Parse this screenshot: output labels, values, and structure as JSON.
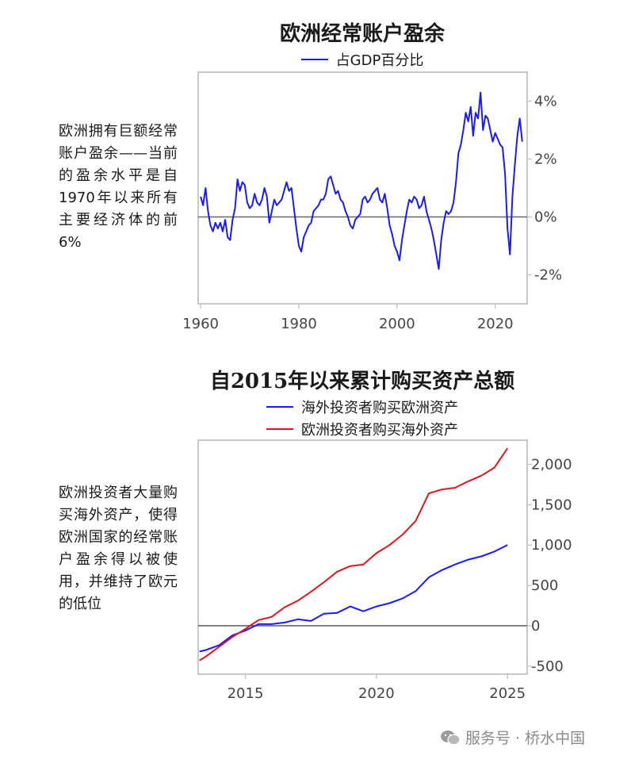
{
  "watermark": {
    "icon": "wechat-icon",
    "text": "服务号 · 桥水中国"
  },
  "top": {
    "side_note": "欧洲拥有巨额经常账户盈余——当前的盈余水平是自1970年以来所有主要经济体的前6%"
  },
  "bottom": {
    "side_note": "欧洲投资者大量购买海外资产，使得欧洲国家的经常账户盈余得以被使用，并维持了欧元的低位"
  },
  "colors": {
    "blue": "#1a1aff",
    "red": "#e0141e",
    "zero_line": "#666666",
    "frame": "#c8c8c8"
  },
  "chart_data": [
    {
      "type": "line",
      "title": "欧洲经常账户盈余",
      "ylabel": "",
      "xlabel": "",
      "xlim": [
        1959.5,
        2026.5
      ],
      "ylim": [
        -3.0,
        5.0
      ],
      "x_ticks": [
        1960,
        1980,
        2000,
        2020
      ],
      "x_tick_labels": [
        "1960",
        "1980",
        "2000",
        "2020"
      ],
      "y_ticks": [
        4,
        2,
        0,
        -2
      ],
      "y_tick_labels": [
        "4%",
        "2%",
        "0%",
        "-2%"
      ],
      "y_axis_side": "right",
      "zero_line": true,
      "legend": "top-center",
      "series": [
        {
          "name": "占GDP百分比",
          "color": "#1a1aff",
          "x": [
            1960.0,
            1960.5,
            1961.0,
            1961.5,
            1962.0,
            1962.5,
            1963.0,
            1963.5,
            1964.0,
            1964.5,
            1965.0,
            1965.5,
            1966.0,
            1966.5,
            1967.0,
            1967.5,
            1968.0,
            1968.5,
            1969.0,
            1969.5,
            1970.0,
            1970.5,
            1971.0,
            1971.5,
            1972.0,
            1972.5,
            1973.0,
            1973.5,
            1974.0,
            1974.5,
            1975.0,
            1975.5,
            1976.0,
            1976.5,
            1977.0,
            1977.5,
            1978.0,
            1978.5,
            1979.0,
            1979.5,
            1980.0,
            1980.5,
            1981.0,
            1981.5,
            1982.0,
            1982.5,
            1983.0,
            1983.5,
            1984.0,
            1984.5,
            1985.0,
            1985.5,
            1986.0,
            1986.5,
            1987.0,
            1987.5,
            1988.0,
            1988.5,
            1989.0,
            1989.5,
            1990.0,
            1990.5,
            1991.0,
            1991.5,
            1992.0,
            1992.5,
            1993.0,
            1993.5,
            1994.0,
            1994.5,
            1995.0,
            1995.5,
            1996.0,
            1996.5,
            1997.0,
            1997.5,
            1998.0,
            1998.5,
            1999.0,
            1999.5,
            2000.0,
            2000.5,
            2001.0,
            2001.5,
            2002.0,
            2002.5,
            2003.0,
            2003.5,
            2004.0,
            2004.5,
            2005.0,
            2005.5,
            2006.0,
            2006.5,
            2007.0,
            2007.5,
            2008.0,
            2008.5,
            2009.0,
            2009.5,
            2010.0,
            2010.5,
            2011.0,
            2011.5,
            2012.0,
            2012.5,
            2013.0,
            2013.5,
            2014.0,
            2014.5,
            2015.0,
            2015.5,
            2016.0,
            2016.5,
            2017.0,
            2017.5,
            2018.0,
            2018.5,
            2019.0,
            2019.5,
            2020.0,
            2020.5,
            2021.0,
            2021.5,
            2022.0,
            2022.5,
            2023.0,
            2023.5,
            2024.0,
            2024.5,
            2025.0,
            2025.5
          ],
          "values": [
            0.7,
            0.4,
            1.0,
            0.2,
            -0.3,
            -0.5,
            -0.2,
            -0.4,
            -0.2,
            -0.5,
            -0.1,
            -0.7,
            -0.8,
            -0.1,
            0.3,
            1.3,
            0.9,
            1.2,
            1.1,
            0.5,
            0.3,
            0.4,
            0.8,
            0.5,
            0.4,
            0.6,
            1.0,
            0.7,
            -0.2,
            0.2,
            0.6,
            0.4,
            0.5,
            0.6,
            0.9,
            1.2,
            0.9,
            1.0,
            0.3,
            -0.4,
            -1.0,
            -1.2,
            -0.7,
            -0.5,
            -0.3,
            -0.2,
            0.2,
            0.3,
            0.4,
            0.6,
            0.6,
            0.8,
            1.3,
            1.4,
            1.1,
            0.8,
            0.9,
            0.6,
            0.5,
            0.2,
            0.0,
            -0.3,
            -0.4,
            -0.1,
            0.0,
            0.1,
            0.6,
            0.7,
            0.5,
            0.6,
            0.8,
            0.9,
            1.0,
            0.6,
            0.5,
            0.8,
            0.3,
            -0.3,
            -0.6,
            -1.0,
            -1.2,
            -1.5,
            -0.8,
            -0.3,
            0.2,
            0.6,
            0.5,
            0.7,
            0.6,
            0.3,
            0.4,
            0.7,
            0.2,
            -0.1,
            -0.4,
            -0.8,
            -1.3,
            -1.8,
            -0.8,
            -0.2,
            0.2,
            0.1,
            0.2,
            0.5,
            1.2,
            2.2,
            2.5,
            3.0,
            3.6,
            3.3,
            3.8,
            2.8,
            3.6,
            3.4,
            4.3,
            3.0,
            3.5,
            3.4,
            3.0,
            2.6,
            2.9,
            2.7,
            2.5,
            2.4,
            1.5,
            -0.4,
            -1.3,
            0.7,
            1.8,
            2.8,
            3.4,
            2.6
          ]
        }
      ]
    },
    {
      "type": "line",
      "title": "自2015年以来累计购买资产总额",
      "ylabel": "",
      "xlabel": "",
      "xlim": [
        2013.2,
        2025.75
      ],
      "ylim": [
        -600,
        2300
      ],
      "x_ticks": [
        2015,
        2020,
        2025
      ],
      "x_tick_labels": [
        "2015",
        "2020",
        "2025"
      ],
      "y_ticks": [
        2000,
        1500,
        1000,
        500,
        0,
        -500
      ],
      "y_tick_labels": [
        "2,000",
        "1,500",
        "1,000",
        "500",
        "0",
        "-500"
      ],
      "y_axis_side": "right",
      "zero_line": true,
      "legend": "top-center",
      "series": [
        {
          "name": "海外投资者购买欧洲资产",
          "color": "#1a1aff",
          "x": [
            2013.25,
            2013.5,
            2014.0,
            2014.5,
            2015.0,
            2015.5,
            2016.0,
            2016.5,
            2017.0,
            2017.5,
            2018.0,
            2018.5,
            2019.0,
            2019.5,
            2020.0,
            2020.5,
            2021.0,
            2021.5,
            2022.0,
            2022.5,
            2023.0,
            2023.5,
            2024.0,
            2024.5,
            2025.0
          ],
          "values": [
            -320,
            -300,
            -240,
            -120,
            -60,
            20,
            20,
            40,
            80,
            60,
            150,
            160,
            240,
            180,
            240,
            280,
            340,
            430,
            600,
            690,
            760,
            820,
            860,
            920,
            1000
          ]
        },
        {
          "name": "欧洲投资者购买海外资产",
          "color": "#e0141e",
          "x": [
            2013.25,
            2013.5,
            2014.0,
            2014.5,
            2015.0,
            2015.5,
            2016.0,
            2016.5,
            2017.0,
            2017.5,
            2018.0,
            2018.5,
            2019.0,
            2019.5,
            2020.0,
            2020.5,
            2021.0,
            2021.5,
            2022.0,
            2022.5,
            2023.0,
            2023.5,
            2024.0,
            2024.5,
            2025.0
          ],
          "values": [
            -430,
            -380,
            -260,
            -140,
            -40,
            70,
            110,
            230,
            310,
            420,
            540,
            670,
            740,
            760,
            900,
            1000,
            1130,
            1300,
            1640,
            1690,
            1710,
            1790,
            1860,
            1960,
            2200
          ]
        }
      ]
    }
  ]
}
